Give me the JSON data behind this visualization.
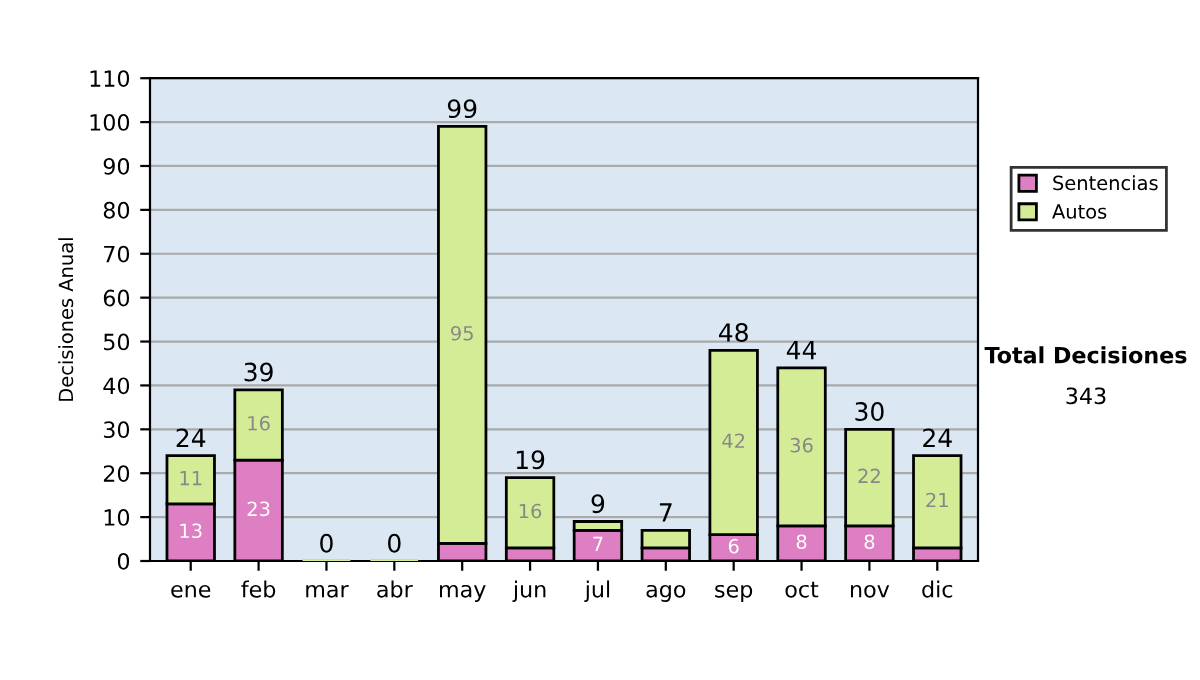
{
  "chart_data": {
    "type": "bar",
    "stacked": true,
    "ylabel": "Decisiones Anual",
    "categories": [
      "ene",
      "feb",
      "mar",
      "abr",
      "may",
      "jun",
      "jul",
      "ago",
      "sep",
      "oct",
      "nov",
      "dic"
    ],
    "series": [
      {
        "name": "Sentencias",
        "color": "#de7fc4",
        "values": [
          13,
          23,
          0,
          0,
          4,
          3,
          7,
          3,
          6,
          8,
          8,
          3
        ],
        "value_labels": [
          "13",
          "23",
          null,
          null,
          null,
          null,
          "7",
          null,
          "6",
          "8",
          "8",
          null
        ]
      },
      {
        "name": "Autos",
        "color": "#d5ec97",
        "values": [
          11,
          16,
          0,
          0,
          95,
          16,
          2,
          4,
          42,
          36,
          22,
          21
        ],
        "value_labels": [
          "11",
          "16",
          null,
          null,
          "95",
          "16",
          null,
          null,
          "42",
          "36",
          "22",
          "21"
        ]
      }
    ],
    "totals": [
      "24",
      "39",
      "0",
      "0",
      "99",
      "19",
      "9",
      "7",
      "48",
      "44",
      "30",
      "24"
    ],
    "ylim": [
      0,
      110
    ],
    "yticks": [
      0,
      10,
      20,
      30,
      40,
      50,
      60,
      70,
      80,
      90,
      100,
      110
    ],
    "grid": "y",
    "legend": "right",
    "annotations": [
      "Total Decisiones",
      "343"
    ]
  }
}
